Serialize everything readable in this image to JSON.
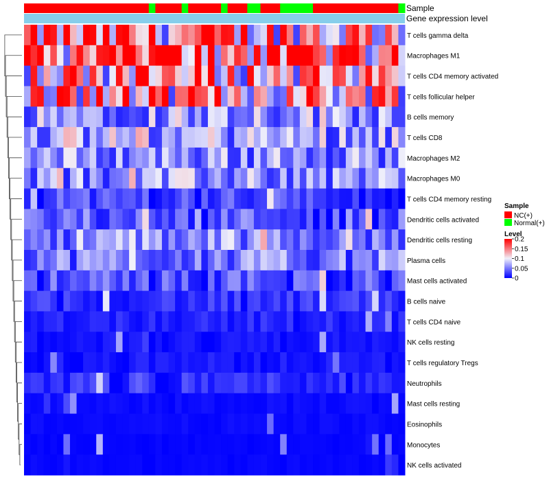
{
  "chart_data": {
    "type": "heatmap",
    "annotation_tracks": [
      "Sample",
      "Gene expression level"
    ],
    "sample_groups": [
      "NC(+)",
      "NC(+)",
      "NC(+)",
      "NC(+)",
      "NC(+)",
      "NC(+)",
      "NC(+)",
      "NC(+)",
      "NC(+)",
      "NC(+)",
      "NC(+)",
      "NC(+)",
      "NC(+)",
      "NC(+)",
      "NC(+)",
      "NC(+)",
      "NC(+)",
      "NC(+)",
      "NC(+)",
      "Normal(+)",
      "NC(+)",
      "NC(+)",
      "NC(+)",
      "NC(+)",
      "Normal(+)",
      "NC(+)",
      "NC(+)",
      "NC(+)",
      "NC(+)",
      "NC(+)",
      "Normal(+)",
      "NC(+)",
      "NC(+)",
      "NC(+)",
      "Normal(+)",
      "Normal(+)",
      "NC(+)",
      "NC(+)",
      "NC(+)",
      "Normal(+)",
      "Normal(+)",
      "Normal(+)",
      "Normal(+)",
      "Normal(+)",
      "NC(+)",
      "NC(+)",
      "NC(+)",
      "NC(+)",
      "NC(+)",
      "NC(+)",
      "NC(+)",
      "NC(+)",
      "NC(+)",
      "NC(+)",
      "NC(+)",
      "NC(+)",
      "NC(+)",
      "Normal(+)"
    ],
    "rows": [
      "T cells gamma delta",
      "Macrophages M1",
      "T cells CD4 memory activated",
      "T cells follicular helper",
      "B cells memory",
      "T cells CD8",
      "Macrophages M2",
      "Macrophages M0",
      "T cells CD4 memory resting",
      "Dendritic cells activated",
      "Dendritic cells resting",
      "Plasma cells",
      "Mast cells activated",
      "B cells naive",
      "T cells CD4 naive",
      "NK cells resting",
      "T cells regulatory  Tregs",
      "Neutrophils",
      "Mast cells resting",
      "Eosinophils",
      "Monocytes",
      "NK cells activated"
    ],
    "row_base_levels": [
      0.13,
      0.16,
      0.12,
      0.125,
      0.07,
      0.07,
      0.06,
      0.06,
      0.03,
      0.04,
      0.06,
      0.05,
      0.035,
      0.02,
      0.015,
      0.008,
      0.01,
      0.02,
      0.005,
      0.004,
      0.002,
      0.003
    ],
    "legend_sample": {
      "title": "Sample",
      "entries": [
        {
          "label": "NC(+)",
          "color": "#ff0000"
        },
        {
          "label": "Normal(+)",
          "color": "#00ff00"
        }
      ]
    },
    "legend_level": {
      "title": "Level",
      "ticks": [
        "0.2",
        "0.15",
        "0.1",
        "0.05",
        "0"
      ],
      "tick_values": [
        0.2,
        0.15,
        0.1,
        0.05,
        0
      ]
    },
    "color_scale": {
      "low": "#0000ff",
      "mid": "#f0f0fa",
      "high": "#ff0000",
      "min": 0,
      "mid_value": 0.1,
      "max": 0.2
    },
    "annotation_color": "#87ceeb"
  }
}
